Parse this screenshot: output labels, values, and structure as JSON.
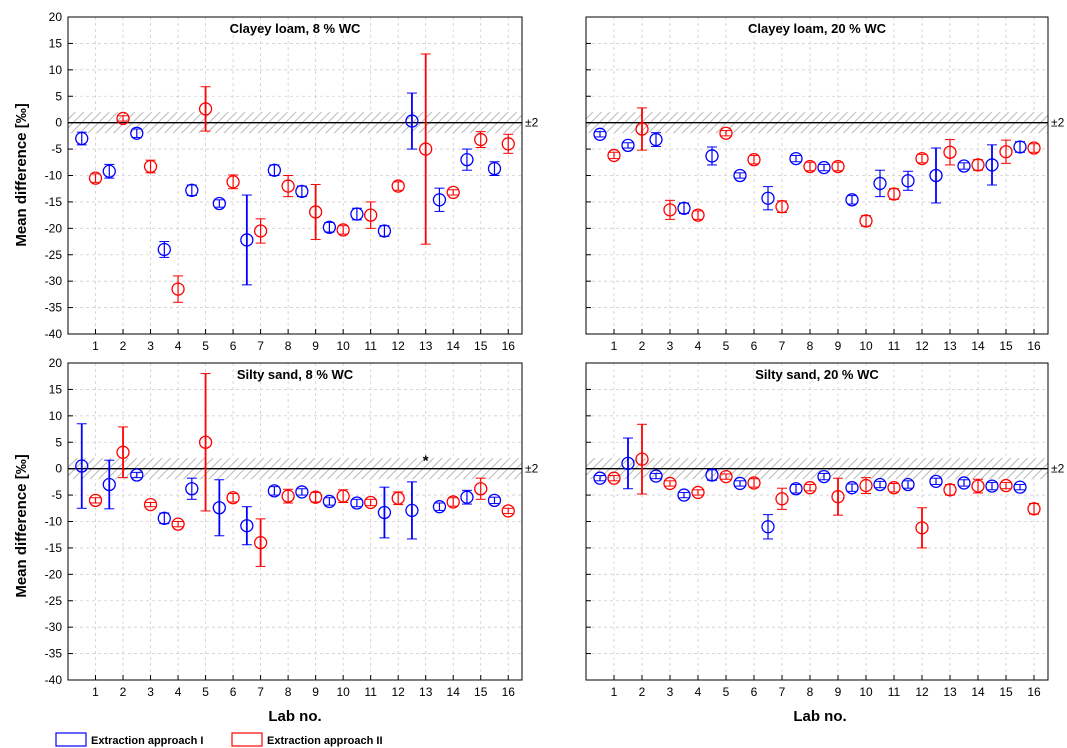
{
  "figure": {
    "ylabel": "Mean difference [‰]",
    "xlabel": "Lab no.",
    "band_label": "±2"
  },
  "legend": {
    "items": [
      {
        "label": "Extraction approach I",
        "color": "#0000ff"
      },
      {
        "label": "Extraction approach II",
        "color": "#ff0000"
      }
    ]
  },
  "chart_data": [
    {
      "type": "scatter",
      "title": "Clayey loam, 8 % WC",
      "xlabel": "Lab no.",
      "ylabel": "Mean difference [‰]",
      "ylim": [
        -40,
        20
      ],
      "yticks": [
        20,
        15,
        10,
        5,
        0,
        -5,
        -10,
        -15,
        -20,
        -25,
        -30,
        -35,
        -40
      ],
      "categories": [
        "1",
        "2",
        "3",
        "4",
        "5",
        "6",
        "7",
        "8",
        "9",
        "10",
        "11",
        "12",
        "13",
        "14",
        "15",
        "16"
      ],
      "grid": true,
      "reference_band": [
        -2,
        2
      ],
      "series": [
        {
          "name": "Extraction approach I",
          "color": "#0000ff",
          "points": [
            {
              "x": 0.5,
              "y": -3,
              "err": 1.2
            },
            {
              "x": 1.5,
              "y": -9.2,
              "err": 1.3
            },
            {
              "x": 2.5,
              "y": -2,
              "err": 0.8
            },
            {
              "x": 3.5,
              "y": -24,
              "err": 1.5
            },
            {
              "x": 4.5,
              "y": -12.8,
              "err": 1
            },
            {
              "x": 5.5,
              "y": -15.3,
              "err": 0.7
            },
            {
              "x": 6.5,
              "y": -22.2,
              "err": 8.5
            },
            {
              "x": 7.5,
              "y": -9,
              "err": 1
            },
            {
              "x": 8.5,
              "y": -13,
              "err": 1
            },
            {
              "x": 9.5,
              "y": -19.8,
              "err": 0.9
            },
            {
              "x": 10.5,
              "y": -17.3,
              "err": 1.1
            },
            {
              "x": 11.5,
              "y": -20.5,
              "err": 1
            },
            {
              "x": 12.5,
              "y": 0.3,
              "err": 5.3
            },
            {
              "x": 13.5,
              "y": -14.6,
              "err": 2.2
            },
            {
              "x": 14.5,
              "y": -7,
              "err": 2
            },
            {
              "x": 15.5,
              "y": -8.7,
              "err": 1.3
            }
          ]
        },
        {
          "name": "Extraction approach II",
          "color": "#ff0000",
          "points": [
            {
              "x": 1,
              "y": -10.5,
              "err": 0.8
            },
            {
              "x": 2,
              "y": 0.8,
              "err": 0.5
            },
            {
              "x": 3,
              "y": -8.3,
              "err": 1.2
            },
            {
              "x": 4,
              "y": -31.5,
              "err": 2.5
            },
            {
              "x": 5,
              "y": 2.6,
              "err": 4.2
            },
            {
              "x": 6,
              "y": -11.2,
              "err": 1.3
            },
            {
              "x": 7,
              "y": -20.5,
              "err": 2.3
            },
            {
              "x": 8,
              "y": -12,
              "err": 2
            },
            {
              "x": 9,
              "y": -16.9,
              "err": 5.2
            },
            {
              "x": 10,
              "y": -20.3,
              "err": 0.8
            },
            {
              "x": 11,
              "y": -17.5,
              "err": 2.5
            },
            {
              "x": 12,
              "y": -12,
              "err": 0.8
            },
            {
              "x": 13,
              "y": -5,
              "err": 18
            },
            {
              "x": 14,
              "y": -13.2,
              "err": 0.5
            },
            {
              "x": 15,
              "y": -3.2,
              "err": 1.5
            },
            {
              "x": 16,
              "y": -4,
              "err": 1.8
            }
          ]
        }
      ]
    },
    {
      "type": "scatter",
      "title": "Clayey loam, 20 % WC",
      "xlabel": "Lab no.",
      "ylabel": "",
      "ylim": [
        -40,
        20
      ],
      "categories": [
        "1",
        "2",
        "3",
        "4",
        "5",
        "6",
        "7",
        "8",
        "9",
        "10",
        "11",
        "12",
        "13",
        "14",
        "15",
        "16"
      ],
      "grid": true,
      "reference_band": [
        -2,
        2
      ],
      "series": [
        {
          "name": "Extraction approach I",
          "color": "#0000ff",
          "points": [
            {
              "x": 0.5,
              "y": -2.2,
              "err": 0.5
            },
            {
              "x": 1.5,
              "y": -4.3,
              "err": 0.5
            },
            {
              "x": 2.5,
              "y": -3.2,
              "err": 1.3
            },
            {
              "x": 3.5,
              "y": -16.2,
              "err": 1
            },
            {
              "x": 4.5,
              "y": -6.3,
              "err": 1.7
            },
            {
              "x": 5.5,
              "y": -10,
              "err": 0.5
            },
            {
              "x": 6.5,
              "y": -14.3,
              "err": 2.2
            },
            {
              "x": 7.5,
              "y": -6.8,
              "err": 0.6
            },
            {
              "x": 8.5,
              "y": -8.5,
              "err": 0.6
            },
            {
              "x": 9.5,
              "y": -14.6,
              "err": 0.8
            },
            {
              "x": 10.5,
              "y": -11.5,
              "err": 2.5
            },
            {
              "x": 11.5,
              "y": -11,
              "err": 1.8
            },
            {
              "x": 12.5,
              "y": -10,
              "err": 5.2
            },
            {
              "x": 13.5,
              "y": -8.2,
              "err": 0.6
            },
            {
              "x": 14.5,
              "y": -8,
              "err": 3.8
            },
            {
              "x": 15.5,
              "y": -4.6,
              "err": 1
            }
          ]
        },
        {
          "name": "Extraction approach II",
          "color": "#ff0000",
          "points": [
            {
              "x": 1,
              "y": -6.2,
              "err": 0.6
            },
            {
              "x": 2,
              "y": -1.2,
              "err": 4
            },
            {
              "x": 3,
              "y": -16.5,
              "err": 1.8
            },
            {
              "x": 4,
              "y": -17.5,
              "err": 0.8
            },
            {
              "x": 5,
              "y": -2,
              "err": 0.5
            },
            {
              "x": 6,
              "y": -7,
              "err": 0.8
            },
            {
              "x": 7,
              "y": -15.9,
              "err": 1.1
            },
            {
              "x": 8,
              "y": -8.3,
              "err": 0.8
            },
            {
              "x": 9,
              "y": -8.3,
              "err": 0.8
            },
            {
              "x": 10,
              "y": -18.6,
              "err": 1
            },
            {
              "x": 11,
              "y": -13.5,
              "err": 1
            },
            {
              "x": 12,
              "y": -6.8,
              "err": 0.8
            },
            {
              "x": 13,
              "y": -5.6,
              "err": 2.4
            },
            {
              "x": 14,
              "y": -8,
              "err": 1
            },
            {
              "x": 15,
              "y": -5.5,
              "err": 2.2
            },
            {
              "x": 16,
              "y": -4.8,
              "err": 0.8
            }
          ]
        }
      ]
    },
    {
      "type": "scatter",
      "title": "Silty sand, 8 % WC",
      "xlabel": "Lab no.",
      "ylabel": "Mean difference [‰]",
      "ylim": [
        -40,
        20
      ],
      "categories": [
        "1",
        "2",
        "3",
        "4",
        "5",
        "6",
        "7",
        "8",
        "9",
        "10",
        "11",
        "12",
        "13",
        "14",
        "15",
        "16"
      ],
      "grid": true,
      "reference_band": [
        -2,
        2
      ],
      "annotation": {
        "text": "*",
        "x": 13,
        "y": 1.5
      },
      "series": [
        {
          "name": "Extraction approach I",
          "color": "#0000ff",
          "points": [
            {
              "x": 0.5,
              "y": 0.5,
              "err": 8
            },
            {
              "x": 1.5,
              "y": -3,
              "err": 4.6
            },
            {
              "x": 2.5,
              "y": -1.2,
              "err": 0.5
            },
            {
              "x": 3.5,
              "y": -9.4,
              "err": 1
            },
            {
              "x": 4.5,
              "y": -3.8,
              "err": 2
            },
            {
              "x": 5.5,
              "y": -7.4,
              "err": 5.3
            },
            {
              "x": 6.5,
              "y": -10.8,
              "err": 3.6
            },
            {
              "x": 7.5,
              "y": -4.2,
              "err": 0.8
            },
            {
              "x": 8.5,
              "y": -4.4,
              "err": 0.6
            },
            {
              "x": 9.5,
              "y": -6.2,
              "err": 0.7
            },
            {
              "x": 10.5,
              "y": -6.5,
              "err": 0.7
            },
            {
              "x": 11.5,
              "y": -8.3,
              "err": 4.8
            },
            {
              "x": 12.5,
              "y": -7.9,
              "err": 5.4
            },
            {
              "x": 13.5,
              "y": -7.2,
              "err": 0.7
            },
            {
              "x": 14.5,
              "y": -5.4,
              "err": 1.3
            },
            {
              "x": 15.5,
              "y": -6,
              "err": 0.6
            }
          ]
        },
        {
          "name": "Extraction approach II",
          "color": "#ff0000",
          "points": [
            {
              "x": 1,
              "y": -6,
              "err": 0.5
            },
            {
              "x": 2,
              "y": 3.1,
              "err": 4.8
            },
            {
              "x": 3,
              "y": -6.8,
              "err": 0.4
            },
            {
              "x": 4,
              "y": -10.5,
              "err": 0.5
            },
            {
              "x": 5,
              "y": 5,
              "err": 13
            },
            {
              "x": 6,
              "y": -5.5,
              "err": 0.8
            },
            {
              "x": 7,
              "y": -14,
              "err": 4.5
            },
            {
              "x": 8,
              "y": -5.2,
              "err": 1.3
            },
            {
              "x": 9,
              "y": -5.4,
              "err": 0.9
            },
            {
              "x": 10,
              "y": -5.2,
              "err": 1.2
            },
            {
              "x": 11,
              "y": -6.4,
              "err": 0.6
            },
            {
              "x": 12,
              "y": -5.6,
              "err": 1.2
            },
            {
              "x": 14,
              "y": -6.3,
              "err": 0.8
            },
            {
              "x": 15,
              "y": -3.8,
              "err": 2
            },
            {
              "x": 16,
              "y": -8,
              "err": 0.5
            }
          ]
        }
      ]
    },
    {
      "type": "scatter",
      "title": "Silty sand, 20 % WC",
      "xlabel": "Lab no.",
      "ylabel": "",
      "ylim": [
        -40,
        20
      ],
      "categories": [
        "1",
        "2",
        "3",
        "4",
        "5",
        "6",
        "7",
        "8",
        "9",
        "10",
        "11",
        "12",
        "13",
        "14",
        "15",
        "16"
      ],
      "grid": true,
      "reference_band": [
        -2,
        2
      ],
      "series": [
        {
          "name": "Extraction approach I",
          "color": "#0000ff",
          "points": [
            {
              "x": 0.5,
              "y": -1.8,
              "err": 0.5
            },
            {
              "x": 1.5,
              "y": 1,
              "err": 4.8
            },
            {
              "x": 2.5,
              "y": -1.4,
              "err": 0.5
            },
            {
              "x": 3.5,
              "y": -5,
              "err": 0.5
            },
            {
              "x": 4.5,
              "y": -1.2,
              "err": 1
            },
            {
              "x": 5.5,
              "y": -2.8,
              "err": 0.5
            },
            {
              "x": 6.5,
              "y": -11,
              "err": 2.3
            },
            {
              "x": 7.5,
              "y": -3.8,
              "err": 0.8
            },
            {
              "x": 8.5,
              "y": -1.5,
              "err": 0.6
            },
            {
              "x": 9.5,
              "y": -3.6,
              "err": 0.7
            },
            {
              "x": 10.5,
              "y": -3,
              "err": 0.6
            },
            {
              "x": 11.5,
              "y": -3,
              "err": 0.7
            },
            {
              "x": 12.5,
              "y": -2.4,
              "err": 0.6
            },
            {
              "x": 13.5,
              "y": -2.7,
              "err": 0.6
            },
            {
              "x": 14.5,
              "y": -3.3,
              "err": 0.7
            },
            {
              "x": 15.5,
              "y": -3.5,
              "err": 0.5
            }
          ]
        },
        {
          "name": "Extraction approach II",
          "color": "#ff0000",
          "points": [
            {
              "x": 1,
              "y": -1.8,
              "err": 0.5
            },
            {
              "x": 2,
              "y": 1.8,
              "err": 6.6
            },
            {
              "x": 3,
              "y": -2.8,
              "err": 0.5
            },
            {
              "x": 4,
              "y": -4.5,
              "err": 0.5
            },
            {
              "x": 5,
              "y": -1.5,
              "err": 0.5
            },
            {
              "x": 6,
              "y": -2.7,
              "err": 0.8
            },
            {
              "x": 7,
              "y": -5.7,
              "err": 2
            },
            {
              "x": 8,
              "y": -3.6,
              "err": 0.6
            },
            {
              "x": 9,
              "y": -5.3,
              "err": 3.5
            },
            {
              "x": 10,
              "y": -3.2,
              "err": 1.5
            },
            {
              "x": 11,
              "y": -3.6,
              "err": 0.8
            },
            {
              "x": 12,
              "y": -11.2,
              "err": 3.8
            },
            {
              "x": 13,
              "y": -4,
              "err": 1
            },
            {
              "x": 14,
              "y": -3.3,
              "err": 1.3
            },
            {
              "x": 15,
              "y": -3.2,
              "err": 0.6
            },
            {
              "x": 16,
              "y": -7.6,
              "err": 1
            }
          ]
        }
      ]
    }
  ]
}
